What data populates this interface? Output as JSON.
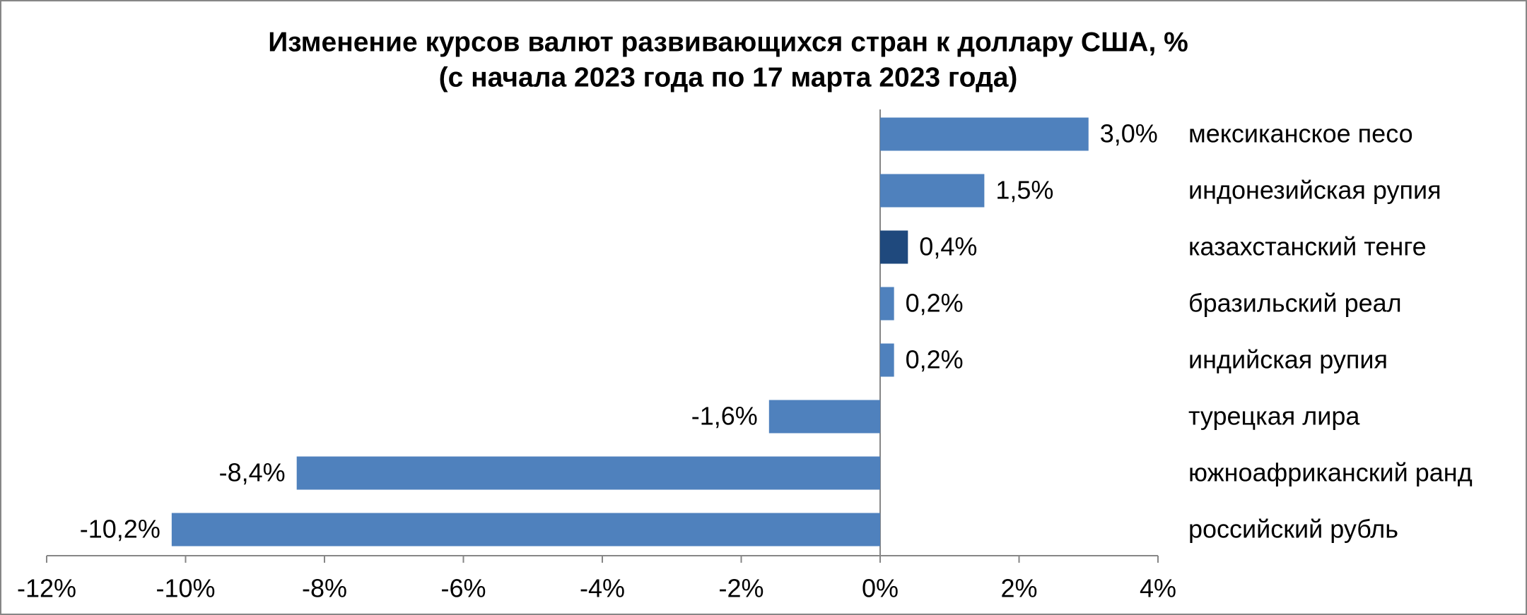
{
  "chart_data": {
    "type": "barh",
    "title": "Изменение курсов валют развивающихся стран к доллару США, %",
    "subtitle": "(с начала 2023 года по 17 марта 2023 года)",
    "categories": [
      "мексиканское песо",
      "индонезийская рупия",
      "казахстанский тенге",
      "бразильский реал",
      "индийская рупия",
      "турецкая лира",
      "южноафриканский ранд",
      "российский рубль"
    ],
    "values": [
      3.0,
      1.5,
      0.4,
      0.2,
      0.2,
      -1.6,
      -8.4,
      -10.2
    ],
    "value_labels": [
      "3,0%",
      "1,5%",
      "0,4%",
      "0,2%",
      "0,2%",
      "-1,6%",
      "-8,4%",
      "-10,2%"
    ],
    "colors": [
      "#4f81bd",
      "#4f81bd",
      "#1f497d",
      "#4f81bd",
      "#4f81bd",
      "#4f81bd",
      "#4f81bd",
      "#4f81bd"
    ],
    "xlim": [
      -12,
      4
    ],
    "xticks": [
      {
        "value": -12,
        "label": "-12%"
      },
      {
        "value": -10,
        "label": "-10%"
      },
      {
        "value": -8,
        "label": "-8%"
      },
      {
        "value": -6,
        "label": "-6%"
      },
      {
        "value": -4,
        "label": "-4%"
      },
      {
        "value": -2,
        "label": "-2%"
      },
      {
        "value": 0,
        "label": "0%"
      },
      {
        "value": 2,
        "label": "2%"
      },
      {
        "value": 4,
        "label": "4%"
      }
    ]
  }
}
